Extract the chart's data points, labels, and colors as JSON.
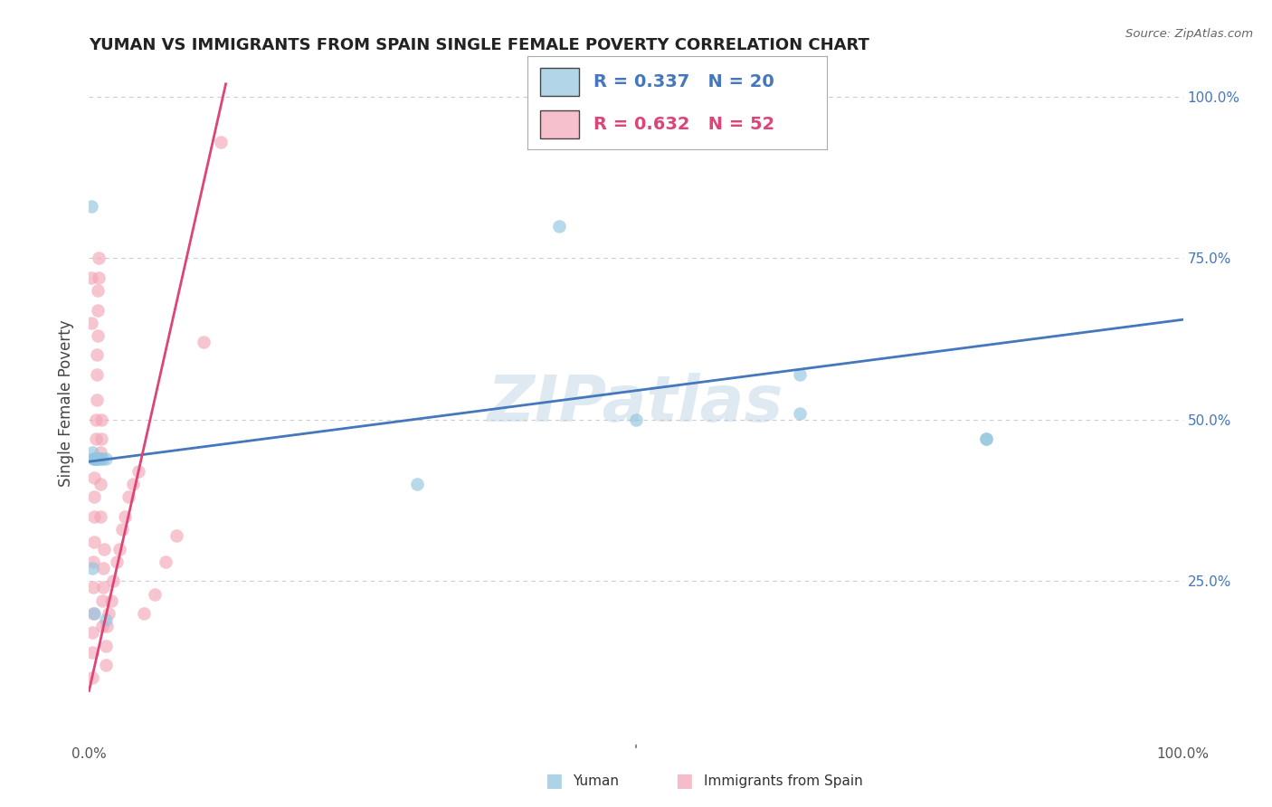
{
  "title": "YUMAN VS IMMIGRANTS FROM SPAIN SINGLE FEMALE POVERTY CORRELATION CHART",
  "source": "Source: ZipAtlas.com",
  "ylabel": "Single Female Poverty",
  "legend1_r": "0.337",
  "legend1_n": "20",
  "legend2_r": "0.632",
  "legend2_n": "52",
  "blue_color": "#92c5de",
  "pink_color": "#f4a6b8",
  "line_blue": "#4477bb",
  "line_pink": "#dd4477",
  "watermark": "ZIPatlas",
  "background_color": "#ffffff",
  "grid_color": "#cccccc",
  "blue_x": [
    0.002,
    0.003,
    0.004,
    0.005,
    0.006,
    0.007,
    0.008,
    0.01,
    0.012,
    0.015,
    0.015,
    0.3,
    0.43,
    0.5,
    0.65,
    0.65,
    0.82,
    0.82,
    0.005,
    0.003
  ],
  "blue_y": [
    0.83,
    0.45,
    0.44,
    0.44,
    0.44,
    0.44,
    0.44,
    0.44,
    0.44,
    0.44,
    0.19,
    0.4,
    0.8,
    0.5,
    0.57,
    0.51,
    0.47,
    0.47,
    0.2,
    0.27
  ],
  "pink_x": [
    0.002,
    0.002,
    0.003,
    0.003,
    0.003,
    0.004,
    0.004,
    0.004,
    0.005,
    0.005,
    0.005,
    0.005,
    0.006,
    0.006,
    0.006,
    0.007,
    0.007,
    0.007,
    0.008,
    0.008,
    0.008,
    0.009,
    0.009,
    0.01,
    0.01,
    0.01,
    0.011,
    0.011,
    0.012,
    0.012,
    0.013,
    0.013,
    0.014,
    0.015,
    0.015,
    0.016,
    0.018,
    0.02,
    0.022,
    0.025,
    0.028,
    0.03,
    0.033,
    0.036,
    0.04,
    0.045,
    0.05,
    0.06,
    0.07,
    0.08,
    0.105,
    0.12
  ],
  "pink_y": [
    0.65,
    0.72,
    0.1,
    0.14,
    0.17,
    0.2,
    0.24,
    0.28,
    0.31,
    0.35,
    0.38,
    0.41,
    0.44,
    0.47,
    0.5,
    0.53,
    0.57,
    0.6,
    0.63,
    0.67,
    0.7,
    0.72,
    0.75,
    0.35,
    0.4,
    0.45,
    0.47,
    0.5,
    0.18,
    0.22,
    0.24,
    0.27,
    0.3,
    0.12,
    0.15,
    0.18,
    0.2,
    0.22,
    0.25,
    0.28,
    0.3,
    0.33,
    0.35,
    0.38,
    0.4,
    0.42,
    0.2,
    0.23,
    0.28,
    0.32,
    0.62,
    0.93
  ],
  "blue_line_x0": 0.0,
  "blue_line_y0": 0.435,
  "blue_line_x1": 1.0,
  "blue_line_y1": 0.655,
  "pink_line_x0": 0.0,
  "pink_line_y0": 0.08,
  "pink_line_x1": 0.125,
  "pink_line_y1": 1.02,
  "xlim": [
    0.0,
    1.0
  ],
  "ylim": [
    0.0,
    1.05
  ],
  "yticks": [
    0.25,
    0.5,
    0.75,
    1.0
  ],
  "ytick_labels": [
    "25.0%",
    "50.0%",
    "75.0%",
    "100.0%"
  ]
}
